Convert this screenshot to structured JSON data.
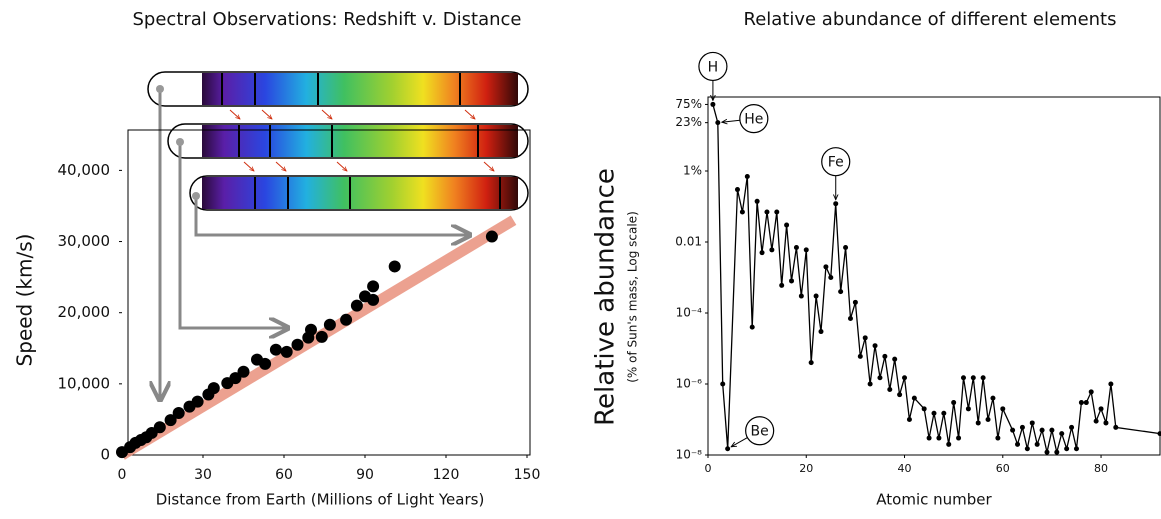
{
  "chart_data": [
    {
      "type": "scatter",
      "title": "Spectral Observations: Redshift v. Distance",
      "x_label": "Distance from Earth (Millions of Light Years)",
      "y_label": "Speed (km/s)",
      "x": [
        0,
        3,
        5,
        7,
        9,
        11,
        14,
        18,
        21,
        25,
        28,
        32,
        34,
        39,
        42,
        45,
        50,
        53,
        57,
        61,
        65,
        69,
        70,
        74,
        77,
        83,
        87,
        90,
        93,
        93,
        101,
        137
      ],
      "y": [
        400,
        1100,
        1700,
        2100,
        2500,
        3100,
        3900,
        4900,
        5900,
        6800,
        7500,
        8500,
        9400,
        10100,
        10800,
        11700,
        13400,
        12800,
        14800,
        14500,
        15500,
        16500,
        17600,
        16600,
        18300,
        19000,
        21000,
        22300,
        23700,
        21800,
        26500,
        30700
      ],
      "color": "#000000",
      "trend_line": {
        "x": [
          0,
          145
        ],
        "y": [
          0,
          33000
        ],
        "color": "#e9907c"
      },
      "xlim": [
        0,
        150
      ],
      "xticks": [
        0,
        30,
        60,
        90,
        120,
        150
      ],
      "ylim": [
        0,
        52000
      ],
      "yticks": [
        0,
        {
          "value": 10000,
          "label": "10,000"
        },
        {
          "value": 20000,
          "label": "20,000"
        },
        {
          "value": 30000,
          "label": "30,000"
        },
        {
          "value": 40000,
          "label": "40,000"
        }
      ],
      "grid": false
    },
    {
      "type": "line",
      "title": "Relative abundance of different elements",
      "x_label": "Atomic number",
      "y_label": "Relative abundance",
      "y_sublabel": "(% of Sun's mass, Log scale)",
      "x": [
        1,
        2,
        3,
        4,
        6,
        7,
        8,
        9,
        10,
        11,
        12,
        13,
        14,
        15,
        16,
        17,
        18,
        19,
        20,
        21,
        22,
        23,
        24,
        25,
        26,
        27,
        28,
        29,
        30,
        31,
        32,
        33,
        34,
        35,
        36,
        37,
        38,
        39,
        40,
        41,
        42,
        44,
        45,
        46,
        47,
        48,
        49,
        50,
        51,
        52,
        53,
        54,
        55,
        56,
        57,
        58,
        59,
        60,
        62,
        63,
        64,
        65,
        66,
        67,
        68,
        69,
        70,
        71,
        72,
        73,
        74,
        75,
        76,
        77,
        78,
        79,
        80,
        81,
        82,
        83,
        92
      ],
      "values": [
        75,
        23,
        1e-06,
        1.5e-08,
        0.3,
        0.07,
        0.7,
        4e-05,
        0.14,
        0.005,
        0.07,
        0.006,
        0.07,
        0.0006,
        0.03,
        0.0008,
        0.007,
        0.0003,
        0.006,
        4e-06,
        0.0003,
        3e-05,
        0.002,
        0.001,
        0.12,
        0.0004,
        0.007,
        7e-05,
        0.0002,
        6e-06,
        2e-05,
        1e-06,
        1.2e-05,
        1.5e-06,
        6e-06,
        7e-07,
        5e-06,
        5e-07,
        1.5e-06,
        1e-07,
        4e-07,
        2e-07,
        3e-08,
        1.5e-07,
        3e-08,
        1.5e-07,
        2e-08,
        3e-07,
        3e-08,
        1.5e-06,
        2e-07,
        1.5e-06,
        8e-08,
        1.5e-06,
        1e-07,
        4e-07,
        3e-08,
        2e-07,
        5e-08,
        2e-08,
        6e-08,
        1.5e-08,
        8e-08,
        2e-08,
        5e-08,
        1.2e-08,
        5e-08,
        1.2e-08,
        4e-08,
        1.5e-08,
        6e-08,
        1.5e-08,
        3e-07,
        3e-07,
        6e-07,
        9e-08,
        2e-07,
        8e-08,
        1e-06,
        6e-08,
        4e-08
      ],
      "color": "#000000",
      "log_y": true,
      "xlim": [
        0,
        92
      ],
      "xticks": [
        0,
        20,
        40,
        60,
        80
      ],
      "ylim": [
        1e-08,
        100
      ],
      "yticks": [
        {
          "value": 75,
          "label": "75%"
        },
        {
          "value": 23,
          "label": "23%"
        },
        {
          "value": 1,
          "label": "1%"
        },
        0.01,
        {
          "value": 0.0001,
          "label": "10⁻⁴"
        },
        {
          "value": 1e-06,
          "label": "10⁻⁶"
        },
        {
          "value": 1e-08,
          "label": "10⁻⁸"
        }
      ],
      "annotations": [
        {
          "text": "H",
          "x": 1
        },
        {
          "text": "He",
          "x": 2
        },
        {
          "text": "Fe",
          "x": 26
        },
        {
          "text": "Be",
          "x": 4
        }
      ],
      "grid": false
    }
  ]
}
